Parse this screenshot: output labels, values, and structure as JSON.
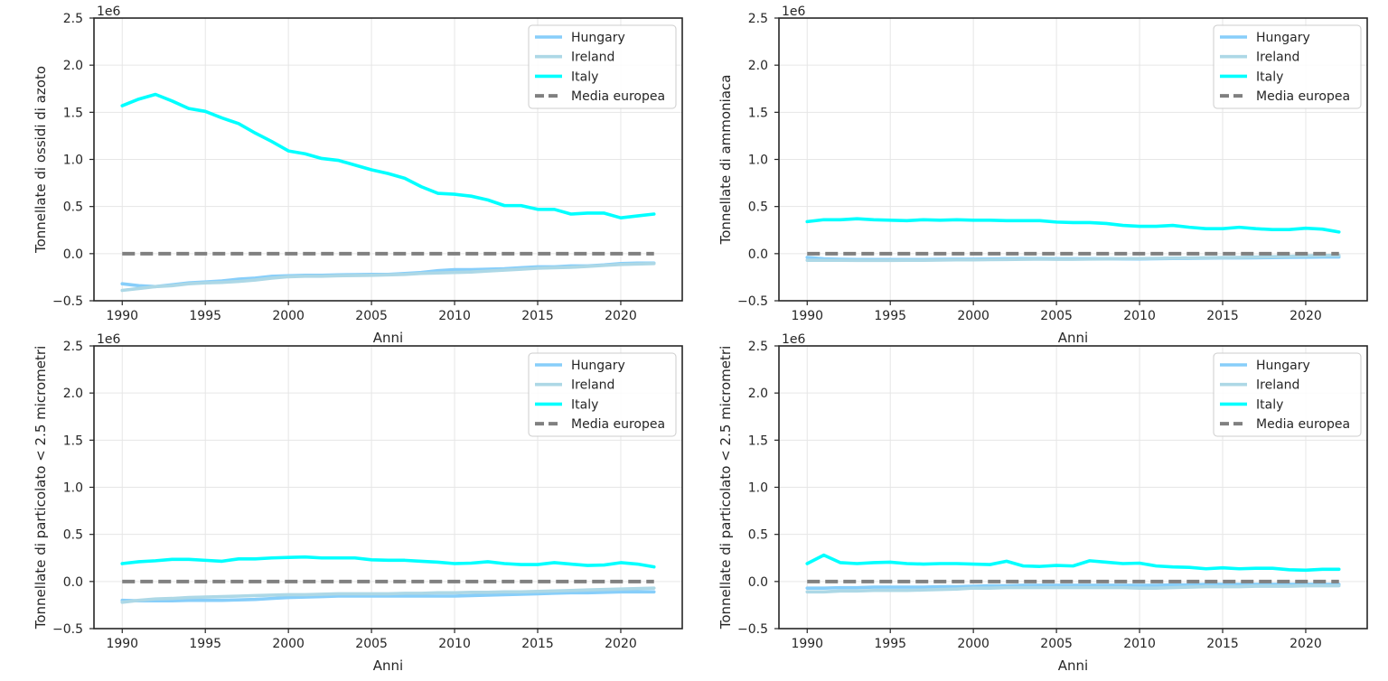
{
  "figure": {
    "colors": {
      "Hungary": "#87cefa",
      "Ireland": "#add8e6",
      "Italy": "#00ffff",
      "Media europea": "#808080",
      "grid": "#e6e6e6",
      "axes": "#262626"
    }
  },
  "chart_data": [
    {
      "type": "line",
      "title": "",
      "xlabel": "Anni",
      "ylabel": "Tonnellate di ossidi di azoto",
      "offset_label": "1e6",
      "xlim": [
        1988.3,
        2023.7
      ],
      "ylim": [
        -0.5,
        2.5
      ],
      "xticks": [
        1990,
        1995,
        2000,
        2005,
        2010,
        2015,
        2020
      ],
      "xtick_labels": [
        "1990",
        "1995",
        "2000",
        "2005",
        "2010",
        "2015",
        "2020"
      ],
      "yticks": [
        -0.5,
        0.0,
        0.5,
        1.0,
        1.5,
        2.0,
        2.5
      ],
      "ytick_labels": [
        "−0.5",
        "0.0",
        "0.5",
        "1.0",
        "1.5",
        "2.0",
        "2.5"
      ],
      "grid": true,
      "legend": "top-right",
      "x": [
        1990,
        1991,
        1992,
        1993,
        1994,
        1995,
        1996,
        1997,
        1998,
        1999,
        2000,
        2001,
        2002,
        2003,
        2004,
        2005,
        2006,
        2007,
        2008,
        2009,
        2010,
        2011,
        2012,
        2013,
        2014,
        2015,
        2016,
        2017,
        2018,
        2019,
        2020,
        2021,
        2022
      ],
      "series": [
        {
          "name": "Hungary",
          "style": "solid",
          "values": [
            -0.32,
            -0.34,
            -0.35,
            -0.33,
            -0.31,
            -0.3,
            -0.29,
            -0.27,
            -0.26,
            -0.24,
            -0.235,
            -0.23,
            -0.23,
            -0.225,
            -0.222,
            -0.22,
            -0.22,
            -0.21,
            -0.2,
            -0.18,
            -0.17,
            -0.17,
            -0.165,
            -0.16,
            -0.15,
            -0.14,
            -0.14,
            -0.13,
            -0.13,
            -0.12,
            -0.105,
            -0.1,
            -0.1
          ]
        },
        {
          "name": "Ireland",
          "style": "solid",
          "values": [
            -0.39,
            -0.37,
            -0.35,
            -0.34,
            -0.32,
            -0.31,
            -0.305,
            -0.295,
            -0.28,
            -0.26,
            -0.245,
            -0.24,
            -0.24,
            -0.235,
            -0.232,
            -0.23,
            -0.225,
            -0.22,
            -0.21,
            -0.205,
            -0.2,
            -0.195,
            -0.185,
            -0.175,
            -0.165,
            -0.155,
            -0.15,
            -0.145,
            -0.135,
            -0.125,
            -0.115,
            -0.11,
            -0.105
          ]
        },
        {
          "name": "Italy",
          "style": "solid",
          "values": [
            1.57,
            1.64,
            1.69,
            1.62,
            1.54,
            1.51,
            1.44,
            1.38,
            1.28,
            1.19,
            1.09,
            1.06,
            1.01,
            0.99,
            0.94,
            0.89,
            0.85,
            0.8,
            0.71,
            0.64,
            0.63,
            0.61,
            0.57,
            0.51,
            0.51,
            0.47,
            0.47,
            0.42,
            0.43,
            0.43,
            0.38,
            0.4,
            0.42
          ]
        },
        {
          "name": "Media europea",
          "style": "dashed",
          "values": [
            0,
            0,
            0,
            0,
            0,
            0,
            0,
            0,
            0,
            0,
            0,
            0,
            0,
            0,
            0,
            0,
            0,
            0,
            0,
            0,
            0,
            0,
            0,
            0,
            0,
            0,
            0,
            0,
            0,
            0,
            0,
            0,
            0
          ]
        }
      ]
    },
    {
      "type": "line",
      "title": "",
      "xlabel": "Anni",
      "ylabel": "Tonnellate di ammoniaca",
      "offset_label": "1e6",
      "xlim": [
        1988.3,
        2023.7
      ],
      "ylim": [
        -0.5,
        2.5
      ],
      "xticks": [
        1990,
        1995,
        2000,
        2005,
        2010,
        2015,
        2020
      ],
      "xtick_labels": [
        "1990",
        "1995",
        "2000",
        "2005",
        "2010",
        "2015",
        "2020"
      ],
      "yticks": [
        -0.5,
        0.0,
        0.5,
        1.0,
        1.5,
        2.0,
        2.5
      ],
      "ytick_labels": [
        "−0.5",
        "0.0",
        "0.5",
        "1.0",
        "1.5",
        "2.0",
        "2.5"
      ],
      "grid": true,
      "legend": "top-right",
      "x": [
        1990,
        1991,
        1992,
        1993,
        1994,
        1995,
        1996,
        1997,
        1998,
        1999,
        2000,
        2001,
        2002,
        2003,
        2004,
        2005,
        2006,
        2007,
        2008,
        2009,
        2010,
        2011,
        2012,
        2013,
        2014,
        2015,
        2016,
        2017,
        2018,
        2019,
        2020,
        2021,
        2022
      ],
      "series": [
        {
          "name": "Hungary",
          "style": "solid",
          "values": [
            -0.04,
            -0.055,
            -0.06,
            -0.062,
            -0.062,
            -0.062,
            -0.062,
            -0.062,
            -0.06,
            -0.058,
            -0.058,
            -0.056,
            -0.054,
            -0.052,
            -0.052,
            -0.054,
            -0.054,
            -0.054,
            -0.054,
            -0.056,
            -0.056,
            -0.054,
            -0.052,
            -0.05,
            -0.048,
            -0.046,
            -0.046,
            -0.044,
            -0.042,
            -0.04,
            -0.038,
            -0.036,
            -0.036
          ]
        },
        {
          "name": "Ireland",
          "style": "solid",
          "values": [
            -0.07,
            -0.07,
            -0.07,
            -0.072,
            -0.072,
            -0.072,
            -0.07,
            -0.07,
            -0.068,
            -0.066,
            -0.066,
            -0.064,
            -0.062,
            -0.06,
            -0.058,
            -0.06,
            -0.06,
            -0.058,
            -0.056,
            -0.054,
            -0.052,
            -0.05,
            -0.048,
            -0.046,
            -0.044,
            -0.042,
            -0.04,
            -0.036,
            -0.032,
            -0.028,
            -0.024,
            -0.02,
            -0.018
          ]
        },
        {
          "name": "Italy",
          "style": "solid",
          "values": [
            0.34,
            0.36,
            0.36,
            0.37,
            0.36,
            0.355,
            0.35,
            0.36,
            0.355,
            0.36,
            0.355,
            0.355,
            0.35,
            0.35,
            0.35,
            0.335,
            0.33,
            0.33,
            0.32,
            0.3,
            0.29,
            0.29,
            0.3,
            0.28,
            0.265,
            0.265,
            0.28,
            0.265,
            0.255,
            0.255,
            0.27,
            0.26,
            0.23
          ]
        },
        {
          "name": "Media europea",
          "style": "dashed",
          "values": [
            0,
            0,
            0,
            0,
            0,
            0,
            0,
            0,
            0,
            0,
            0,
            0,
            0,
            0,
            0,
            0,
            0,
            0,
            0,
            0,
            0,
            0,
            0,
            0,
            0,
            0,
            0,
            0,
            0,
            0,
            0,
            0,
            0
          ]
        }
      ]
    },
    {
      "type": "line",
      "title": "",
      "xlabel": "Anni",
      "ylabel": "Tonnellate di particolato < 2.5 micrometri",
      "offset_label": "1e6",
      "xlim": [
        1988.3,
        2023.7
      ],
      "ylim": [
        -0.5,
        2.5
      ],
      "xticks": [
        1990,
        1995,
        2000,
        2005,
        2010,
        2015,
        2020
      ],
      "xtick_labels": [
        "1990",
        "1995",
        "2000",
        "2005",
        "2010",
        "2015",
        "2020"
      ],
      "yticks": [
        -0.5,
        0.0,
        0.5,
        1.0,
        1.5,
        2.0,
        2.5
      ],
      "ytick_labels": [
        "−0.5",
        "0.0",
        "0.5",
        "1.0",
        "1.5",
        "2.0",
        "2.5"
      ],
      "grid": true,
      "legend": "top-right",
      "x": [
        1990,
        1991,
        1992,
        1993,
        1994,
        1995,
        1996,
        1997,
        1998,
        1999,
        2000,
        2001,
        2002,
        2003,
        2004,
        2005,
        2006,
        2007,
        2008,
        2009,
        2010,
        2011,
        2012,
        2013,
        2014,
        2015,
        2016,
        2017,
        2018,
        2019,
        2020,
        2021,
        2022
      ],
      "series": [
        {
          "name": "Hungary",
          "style": "solid",
          "values": [
            -0.2,
            -0.205,
            -0.205,
            -0.205,
            -0.2,
            -0.2,
            -0.2,
            -0.195,
            -0.19,
            -0.18,
            -0.17,
            -0.165,
            -0.16,
            -0.155,
            -0.155,
            -0.155,
            -0.155,
            -0.155,
            -0.155,
            -0.155,
            -0.155,
            -0.15,
            -0.145,
            -0.14,
            -0.135,
            -0.13,
            -0.125,
            -0.12,
            -0.12,
            -0.115,
            -0.11,
            -0.11,
            -0.11
          ]
        },
        {
          "name": "Ireland",
          "style": "solid",
          "values": [
            -0.22,
            -0.2,
            -0.185,
            -0.18,
            -0.17,
            -0.165,
            -0.16,
            -0.155,
            -0.15,
            -0.145,
            -0.14,
            -0.14,
            -0.135,
            -0.13,
            -0.13,
            -0.13,
            -0.13,
            -0.125,
            -0.125,
            -0.12,
            -0.12,
            -0.115,
            -0.115,
            -0.11,
            -0.11,
            -0.105,
            -0.1,
            -0.095,
            -0.09,
            -0.085,
            -0.08,
            -0.075,
            -0.07
          ]
        },
        {
          "name": "Italy",
          "style": "solid",
          "values": [
            0.19,
            0.21,
            0.22,
            0.235,
            0.235,
            0.225,
            0.215,
            0.24,
            0.24,
            0.25,
            0.255,
            0.26,
            0.25,
            0.25,
            0.25,
            0.23,
            0.225,
            0.225,
            0.215,
            0.205,
            0.19,
            0.195,
            0.21,
            0.19,
            0.18,
            0.18,
            0.2,
            0.185,
            0.17,
            0.175,
            0.2,
            0.185,
            0.155
          ]
        },
        {
          "name": "Media europea",
          "style": "dashed",
          "values": [
            0,
            0,
            0,
            0,
            0,
            0,
            0,
            0,
            0,
            0,
            0,
            0,
            0,
            0,
            0,
            0,
            0,
            0,
            0,
            0,
            0,
            0,
            0,
            0,
            0,
            0,
            0,
            0,
            0,
            0,
            0,
            0,
            0
          ]
        }
      ]
    },
    {
      "type": "line",
      "title": "",
      "xlabel": "Anni",
      "ylabel": "Tonnellate di particolato < 2.5 micrometri",
      "offset_label": "1e6",
      "xlim": [
        1988.3,
        2023.7
      ],
      "ylim": [
        -0.5,
        2.5
      ],
      "xticks": [
        1990,
        1995,
        2000,
        2005,
        2010,
        2015,
        2020
      ],
      "xtick_labels": [
        "1990",
        "1995",
        "2000",
        "2005",
        "2010",
        "2015",
        "2020"
      ],
      "yticks": [
        -0.5,
        0.0,
        0.5,
        1.0,
        1.5,
        2.0,
        2.5
      ],
      "ytick_labels": [
        "−0.5",
        "0.0",
        "0.5",
        "1.0",
        "1.5",
        "2.0",
        "2.5"
      ],
      "grid": true,
      "legend": "top-right",
      "x": [
        1990,
        1991,
        1992,
        1993,
        1994,
        1995,
        1996,
        1997,
        1998,
        1999,
        2000,
        2001,
        2002,
        2003,
        2004,
        2005,
        2006,
        2007,
        2008,
        2009,
        2010,
        2011,
        2012,
        2013,
        2014,
        2015,
        2016,
        2017,
        2018,
        2019,
        2020,
        2021,
        2022
      ],
      "series": [
        {
          "name": "Hungary",
          "style": "solid",
          "values": [
            -0.07,
            -0.07,
            -0.065,
            -0.065,
            -0.06,
            -0.06,
            -0.06,
            -0.06,
            -0.055,
            -0.055,
            -0.05,
            -0.045,
            -0.045,
            -0.04,
            -0.04,
            -0.04,
            -0.04,
            -0.04,
            -0.04,
            -0.04,
            -0.04,
            -0.04,
            -0.035,
            -0.035,
            -0.03,
            -0.03,
            -0.03,
            -0.03,
            -0.03,
            -0.03,
            -0.03,
            -0.03,
            -0.03
          ]
        },
        {
          "name": "Ireland",
          "style": "solid",
          "values": [
            -0.11,
            -0.11,
            -0.1,
            -0.1,
            -0.095,
            -0.095,
            -0.095,
            -0.09,
            -0.085,
            -0.08,
            -0.07,
            -0.07,
            -0.065,
            -0.065,
            -0.065,
            -0.065,
            -0.065,
            -0.065,
            -0.065,
            -0.065,
            -0.07,
            -0.07,
            -0.065,
            -0.06,
            -0.055,
            -0.055,
            -0.055,
            -0.05,
            -0.05,
            -0.05,
            -0.045,
            -0.045,
            -0.045
          ]
        },
        {
          "name": "Italy",
          "style": "solid",
          "values": [
            0.19,
            0.28,
            0.2,
            0.19,
            0.2,
            0.205,
            0.19,
            0.185,
            0.19,
            0.19,
            0.185,
            0.18,
            0.215,
            0.165,
            0.16,
            0.17,
            0.165,
            0.22,
            0.205,
            0.19,
            0.195,
            0.165,
            0.155,
            0.15,
            0.135,
            0.145,
            0.135,
            0.14,
            0.14,
            0.125,
            0.12,
            0.13,
            0.13
          ]
        },
        {
          "name": "Media europea",
          "style": "dashed",
          "values": [
            0,
            0,
            0,
            0,
            0,
            0,
            0,
            0,
            0,
            0,
            0,
            0,
            0,
            0,
            0,
            0,
            0,
            0,
            0,
            0,
            0,
            0,
            0,
            0,
            0,
            0,
            0,
            0,
            0,
            0,
            0,
            0,
            0
          ]
        }
      ]
    }
  ]
}
